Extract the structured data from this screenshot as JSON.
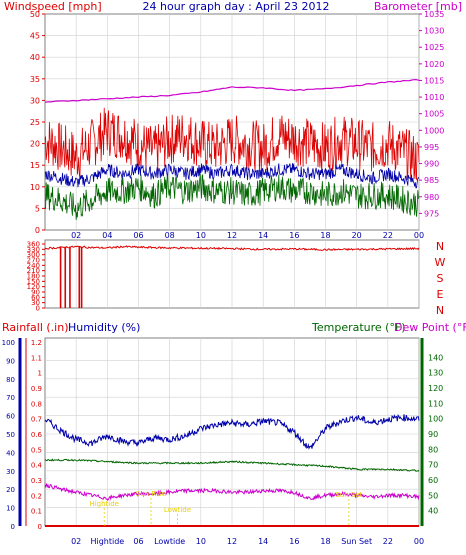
{
  "header": {
    "left_title": "Windspeed [mph]",
    "center_title": "24 hour graph day : April 23 2012",
    "right_title": "Barometer [mb]"
  },
  "colors": {
    "red": "#dd0000",
    "blue": "#0000aa",
    "green": "#006600",
    "magenta": "#cc00cc",
    "yellow": "#e8d000",
    "grid": "#d0d0d0"
  },
  "chart_data": [
    {
      "type": "line",
      "panel": "wind",
      "x_tick_labels": [
        "02",
        "04",
        "06",
        "08",
        "10",
        "12",
        "14",
        "16",
        "18",
        "20",
        "22",
        "00"
      ],
      "left_axis": {
        "label": "Windspeed [mph]",
        "ylim": [
          0,
          50
        ],
        "ticks": [
          0,
          5,
          10,
          15,
          20,
          25,
          30,
          35,
          40,
          45,
          50
        ]
      },
      "right_axis": {
        "label": "Barometer [mb]",
        "ylim": [
          970,
          1035
        ],
        "ticks": [
          975,
          980,
          985,
          990,
          995,
          1000,
          1005,
          1010,
          1015,
          1020,
          1025,
          1030,
          1035
        ]
      },
      "series": [
        {
          "role": "gust",
          "color": "#dd0000",
          "axis": "left",
          "x": [
            0,
            1,
            2,
            3,
            4,
            5,
            6,
            7,
            8,
            9,
            10,
            11,
            12,
            13,
            14,
            15,
            16,
            17,
            18,
            19,
            20,
            21,
            22,
            23,
            24
          ],
          "values": [
            21,
            19,
            17,
            20,
            23,
            22,
            20,
            18,
            21,
            22,
            20,
            19,
            21,
            20,
            19,
            22,
            21,
            20,
            19,
            21,
            20,
            19,
            20,
            18,
            16
          ]
        },
        {
          "role": "average",
          "color": "#0000aa",
          "axis": "left",
          "x": [
            0,
            1,
            2,
            3,
            4,
            5,
            6,
            7,
            8,
            9,
            10,
            11,
            12,
            13,
            14,
            15,
            16,
            17,
            18,
            19,
            20,
            21,
            22,
            23,
            24
          ],
          "values": [
            13,
            12,
            11,
            12,
            14,
            13,
            14,
            13,
            14,
            13,
            14,
            13,
            14,
            13,
            13,
            14,
            14,
            13,
            13,
            14,
            13,
            12,
            13,
            12,
            11
          ]
        },
        {
          "role": "speed",
          "color": "#006600",
          "axis": "left",
          "x": [
            0,
            1,
            2,
            3,
            4,
            5,
            6,
            7,
            8,
            9,
            10,
            11,
            12,
            13,
            14,
            15,
            16,
            17,
            18,
            19,
            20,
            21,
            22,
            23,
            24
          ],
          "values": [
            8,
            7,
            5,
            7,
            9,
            9,
            10,
            8,
            10,
            9,
            10,
            9,
            9,
            8,
            9,
            10,
            9,
            9,
            8,
            9,
            8,
            8,
            8,
            7,
            6
          ]
        },
        {
          "role": "barometer",
          "color": "#cc00cc",
          "axis": "right",
          "x": [
            0,
            2,
            4,
            6,
            8,
            10,
            12,
            14,
            16,
            18,
            20,
            22,
            24
          ],
          "values": [
            1008.5,
            1009.0,
            1009.5,
            1010.0,
            1010.5,
            1011.5,
            1013.0,
            1012.8,
            1012.0,
            1012.5,
            1013.5,
            1014.5,
            1015.2
          ]
        }
      ]
    },
    {
      "type": "line",
      "panel": "wind-direction",
      "left_axis": {
        "ylim": [
          0,
          360
        ],
        "ticks": [
          0,
          30,
          60,
          90,
          120,
          150,
          180,
          210,
          240,
          270,
          300,
          330,
          360
        ]
      },
      "compass_labels": [
        "N",
        "W",
        "S",
        "E",
        "N"
      ],
      "series": [
        {
          "role": "direction",
          "color": "#dd0000",
          "x": [
            0,
            1,
            2,
            3,
            4,
            5,
            6,
            8,
            10,
            12,
            14,
            16,
            18,
            20,
            22,
            24
          ],
          "values": [
            335,
            340,
            345,
            340,
            338,
            345,
            342,
            338,
            336,
            334,
            330,
            332,
            328,
            330,
            332,
            334
          ],
          "dropouts": [
            1.0,
            1.3,
            1.6,
            2.2,
            2.35
          ]
        }
      ]
    },
    {
      "type": "line",
      "panel": "rain-humidity-temperature",
      "labels": {
        "rainfall": "Rainfall (.in)",
        "humidity": "Humidity (%)",
        "temperature": "Temperature (°F)",
        "dewpoint": "Dew Point (°F)"
      },
      "x_tick_labels": [
        "02",
        "Hightide",
        "06",
        "Lowtide",
        "10",
        "12",
        "14",
        "16",
        "18",
        "Sun Set",
        "22",
        "00"
      ],
      "annotations": [
        {
          "text": "Hightide",
          "x": 3.8
        },
        {
          "text": "Sun Rise",
          "x": 6.8
        },
        {
          "text": "Lowtide",
          "x": 8.5
        },
        {
          "text": "Sun Set",
          "x": 19.5
        }
      ],
      "rain_axis": {
        "ylim": [
          0,
          1.2
        ],
        "ticks": [
          0,
          0.1,
          0.2,
          0.3,
          0.4,
          0.5,
          0.6,
          0.7,
          0.8,
          0.9,
          1,
          1.1,
          1.2
        ]
      },
      "humidity_axis": {
        "ylim": [
          0,
          100
        ],
        "ticks": [
          0,
          10,
          20,
          30,
          40,
          50,
          60,
          70,
          80,
          90,
          100
        ]
      },
      "temperature_axis": {
        "ylim": [
          30,
          150
        ],
        "ticks": [
          40,
          50,
          60,
          70,
          80,
          90,
          100,
          110,
          120,
          130,
          140
        ]
      },
      "series": [
        {
          "role": "humidity",
          "color": "#0000aa",
          "axis": "humidity",
          "x": [
            0,
            1,
            2,
            3,
            4,
            5,
            6,
            7,
            8,
            9,
            10,
            11,
            12,
            13,
            14,
            15,
            16,
            17,
            18,
            19,
            20,
            21,
            22,
            23,
            24
          ],
          "values": [
            58,
            52,
            47,
            45,
            49,
            46,
            45,
            48,
            47,
            49,
            53,
            55,
            56,
            55,
            57,
            56,
            51,
            42,
            53,
            57,
            59,
            56,
            58,
            59,
            58
          ]
        },
        {
          "role": "temperature",
          "color": "#006600",
          "axis": "temperature",
          "x": [
            0,
            2,
            4,
            6,
            8,
            10,
            12,
            14,
            16,
            18,
            20,
            22,
            24
          ],
          "values": [
            73,
            73,
            72,
            71,
            71,
            71,
            72,
            71,
            70,
            69,
            67,
            67,
            66
          ]
        },
        {
          "role": "dewpoint",
          "color": "#cc00cc",
          "axis": "temperature",
          "x": [
            0,
            1,
            2,
            3,
            4,
            5,
            6,
            7,
            8,
            9,
            10,
            11,
            12,
            13,
            14,
            15,
            16,
            17,
            18,
            19,
            20,
            21,
            22,
            23,
            24
          ],
          "values": [
            57,
            54,
            52,
            50,
            48,
            50,
            51,
            51,
            52,
            53,
            53,
            53,
            52,
            52,
            53,
            53,
            52,
            48,
            50,
            51,
            50,
            49,
            50,
            50,
            49
          ]
        },
        {
          "role": "rainfall",
          "color": "#dd0000",
          "axis": "rain",
          "x": [
            0,
            24
          ],
          "values": [
            0,
            0
          ]
        }
      ]
    }
  ]
}
